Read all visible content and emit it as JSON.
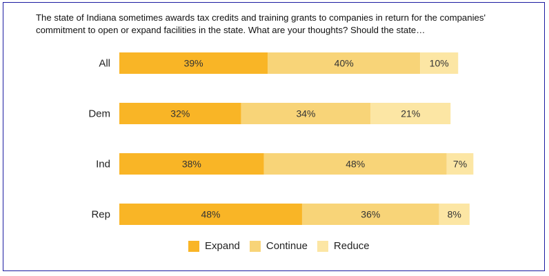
{
  "question": {
    "line1": "The state of Indiana sometimes awards tax credits and training grants to companies in return for the companies'",
    "line2": "commitment to open or expand facilities in the state. What are your thoughts? Should the state…"
  },
  "colors": {
    "expand": "#F9B526",
    "continue": "#F8D478",
    "reduce": "#FCE6A4",
    "border": "#1a1aa0"
  },
  "chart_data": {
    "type": "bar",
    "orientation": "horizontal",
    "stacked": true,
    "categories": [
      "All",
      "Dem",
      "Ind",
      "Rep"
    ],
    "series": [
      {
        "name": "Expand",
        "values": [
          39,
          32,
          38,
          48
        ],
        "labels": [
          "39%",
          "32%",
          "38%",
          "48%"
        ]
      },
      {
        "name": "Continue",
        "values": [
          40,
          34,
          48,
          36
        ],
        "labels": [
          "40%",
          "34%",
          "48%",
          "36%"
        ]
      },
      {
        "name": "Reduce",
        "values": [
          10,
          21,
          7,
          8
        ],
        "labels": [
          "10%",
          "21%",
          "7%",
          "8%"
        ]
      }
    ],
    "legend_position": "bottom",
    "grid": false,
    "xlim": [
      0,
      100
    ]
  }
}
